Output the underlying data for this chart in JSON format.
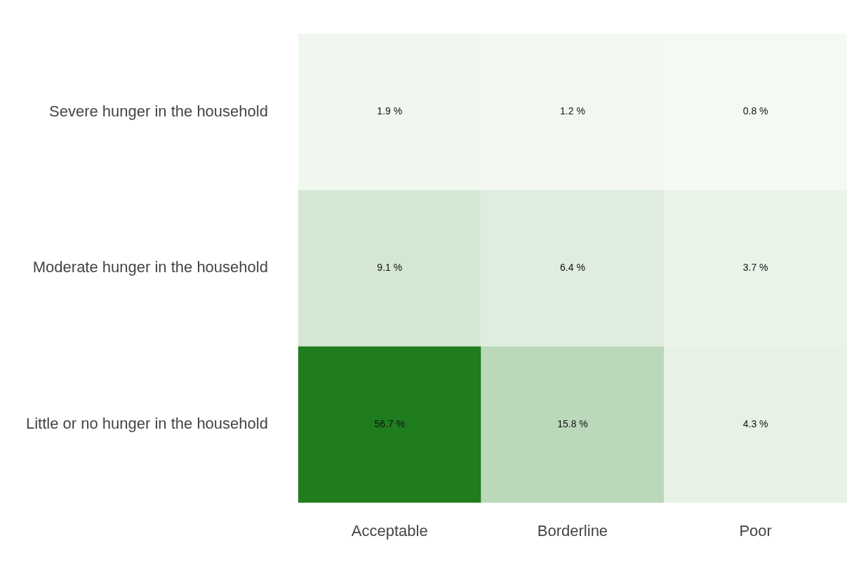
{
  "chart_data": {
    "type": "heatmap",
    "categories": [
      "Acceptable",
      "Borderline",
      "Poor"
    ],
    "y_categories": [
      "Severe hunger in the household",
      "Moderate hunger in the household",
      "Little or no hunger in the household"
    ],
    "cells": [
      [
        1.9,
        1.2,
        0.8
      ],
      [
        9.1,
        6.4,
        3.7
      ],
      [
        56.7,
        15.8,
        4.3
      ]
    ],
    "cell_labels": [
      [
        "1.9 %",
        "1.2 %",
        "0.8 %"
      ],
      [
        "9.1 %",
        "6.4 %",
        "3.7 %"
      ],
      [
        "56.7 %",
        "15.8 %",
        "4.3 %"
      ]
    ]
  }
}
